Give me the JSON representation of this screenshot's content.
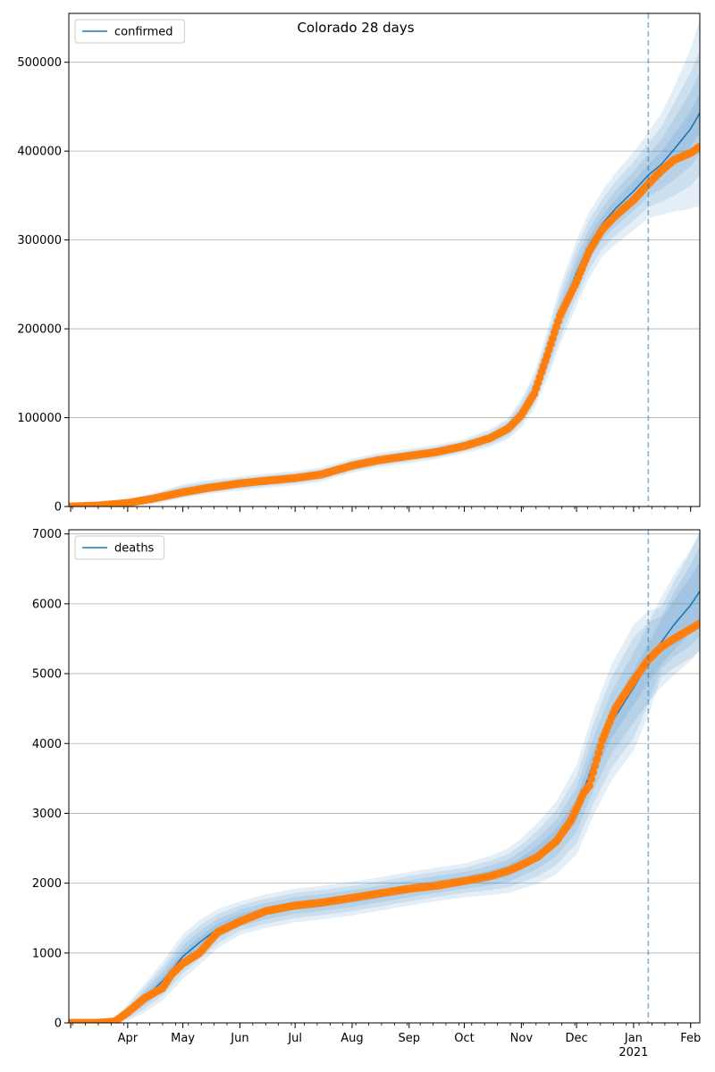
{
  "figure": {
    "title": "Colorado 28 days"
  },
  "colors": {
    "fit_line": "#1f77b4",
    "band": "#1f77b4",
    "observed": "#ff7f0e",
    "grid": "#b0b0b0",
    "vline": "#1f77b4"
  },
  "chart_data": [
    {
      "type": "line",
      "name": "confirmed-panel",
      "legend": [
        "confirmed"
      ],
      "legend_loc": "upper left",
      "grid": "y",
      "xlim": [
        "2020-02-29",
        "2021-02-06"
      ],
      "ylim": [
        0,
        555000
      ],
      "yticks": [
        0,
        100000,
        200000,
        300000,
        400000,
        500000
      ],
      "ytick_labels": [
        "0",
        "100000",
        "200000",
        "300000",
        "400000",
        "500000"
      ],
      "xtick_labels_shown": false,
      "forecast_start": "2021-01-09",
      "fit": {
        "x": [
          "2020-03-01",
          "2020-03-15",
          "2020-04-01",
          "2020-04-15",
          "2020-05-01",
          "2020-05-15",
          "2020-06-01",
          "2020-06-15",
          "2020-07-01",
          "2020-07-15",
          "2020-08-01",
          "2020-08-15",
          "2020-09-01",
          "2020-09-15",
          "2020-10-01",
          "2020-10-15",
          "2020-10-25",
          "2020-11-01",
          "2020-11-08",
          "2020-11-15",
          "2020-11-22",
          "2020-12-01",
          "2020-12-08",
          "2020-12-15",
          "2020-12-22",
          "2021-01-01",
          "2021-01-09",
          "2021-01-16",
          "2021-01-23",
          "2021-02-01",
          "2021-02-06"
        ],
        "y": [
          0,
          1000,
          4000,
          9000,
          17000,
          22000,
          26000,
          29000,
          32000,
          36000,
          46000,
          52000,
          57000,
          61000,
          68000,
          77000,
          88000,
          105000,
          130000,
          170000,
          215000,
          263000,
          295000,
          318000,
          335000,
          355000,
          373000,
          385000,
          402000,
          425000,
          443000
        ],
        "band_widths": [
          [
            0,
            500,
            1000,
            1500,
            2000,
            2000,
            2000,
            2000,
            2000,
            2000,
            2000,
            2000,
            2000,
            2000,
            2000,
            2500,
            3000,
            4000,
            5000,
            7000,
            8000,
            9000,
            9000,
            9000,
            10000,
            11000,
            12000,
            14000,
            17000,
            20000,
            22000
          ],
          [
            0,
            1000,
            2000,
            3000,
            4000,
            4000,
            4000,
            4000,
            4000,
            4000,
            4000,
            4000,
            4000,
            4000,
            4000,
            5000,
            6000,
            8000,
            10000,
            14000,
            16000,
            18000,
            18000,
            18000,
            20000,
            22000,
            24000,
            28000,
            34000,
            42000,
            46000
          ],
          [
            0,
            1500,
            3000,
            4500,
            6000,
            6000,
            6000,
            6000,
            6000,
            6000,
            6000,
            6000,
            6000,
            6000,
            6000,
            7500,
            9000,
            12000,
            15000,
            20000,
            25000,
            28000,
            28000,
            28000,
            30000,
            33000,
            36000,
            42000,
            52000,
            64000,
            70000
          ],
          [
            0,
            2000,
            4000,
            6000,
            8000,
            8000,
            8000,
            8000,
            8000,
            8000,
            8000,
            8000,
            8000,
            8000,
            8000,
            10000,
            12000,
            16000,
            20000,
            27000,
            33000,
            37000,
            37000,
            37000,
            40000,
            44000,
            48000,
            57000,
            70000,
            90000,
            105000
          ]
        ]
      },
      "observed": {
        "x": [
          "2020-03-01",
          "2020-03-15",
          "2020-04-01",
          "2020-04-15",
          "2020-05-01",
          "2020-05-15",
          "2020-06-01",
          "2020-06-15",
          "2020-07-01",
          "2020-07-15",
          "2020-08-01",
          "2020-08-15",
          "2020-09-01",
          "2020-09-15",
          "2020-10-01",
          "2020-10-15",
          "2020-10-25",
          "2020-11-01",
          "2020-11-08",
          "2020-11-15",
          "2020-11-22",
          "2020-12-01",
          "2020-12-08",
          "2020-12-15",
          "2020-12-22",
          "2021-01-01",
          "2021-01-09",
          "2021-01-16",
          "2021-01-23",
          "2021-02-01",
          "2021-02-06"
        ],
        "y": [
          0,
          1000,
          4000,
          9000,
          16000,
          21000,
          26000,
          29000,
          32000,
          36000,
          46000,
          52000,
          57000,
          61000,
          68000,
          77000,
          88000,
          103000,
          127000,
          170000,
          215000,
          253000,
          288000,
          312000,
          327000,
          345000,
          363000,
          378000,
          390000,
          398000,
          405000
        ]
      }
    },
    {
      "type": "line",
      "name": "deaths-panel",
      "legend": [
        "deaths"
      ],
      "legend_loc": "upper left",
      "grid": "y",
      "xlim": [
        "2020-02-29",
        "2021-02-06"
      ],
      "ylim": [
        0,
        7060
      ],
      "yticks": [
        0,
        1000,
        2000,
        3000,
        4000,
        5000,
        6000,
        7000
      ],
      "ytick_labels": [
        "0",
        "1000",
        "2000",
        "3000",
        "4000",
        "5000",
        "6000",
        "7000"
      ],
      "xtick_labels": [
        "Apr",
        "May",
        "Jun",
        "Jul",
        "Aug",
        "Sep",
        "Oct",
        "Nov",
        "Dec",
        "Jan\n2021",
        "Feb"
      ],
      "xtick_dates": [
        "2020-04-01",
        "2020-05-01",
        "2020-06-01",
        "2020-07-01",
        "2020-08-01",
        "2020-09-01",
        "2020-10-01",
        "2020-11-01",
        "2020-12-01",
        "2021-01-01",
        "2021-02-01"
      ],
      "forecast_start": "2021-01-09",
      "fit": {
        "x": [
          "2020-03-01",
          "2020-03-15",
          "2020-03-25",
          "2020-04-01",
          "2020-04-10",
          "2020-04-20",
          "2020-05-01",
          "2020-05-10",
          "2020-05-20",
          "2020-06-01",
          "2020-06-15",
          "2020-07-01",
          "2020-07-15",
          "2020-08-01",
          "2020-08-15",
          "2020-09-01",
          "2020-09-15",
          "2020-10-01",
          "2020-10-15",
          "2020-10-25",
          "2020-11-01",
          "2020-11-10",
          "2020-11-20",
          "2020-12-01",
          "2020-12-10",
          "2020-12-20",
          "2021-01-01",
          "2021-01-09",
          "2021-01-16",
          "2021-01-23",
          "2021-02-01",
          "2021-02-06"
        ],
        "y": [
          0,
          0,
          20,
          150,
          350,
          600,
          950,
          1150,
          1350,
          1500,
          1600,
          1680,
          1720,
          1780,
          1840,
          1920,
          1980,
          2040,
          2110,
          2180,
          2280,
          2430,
          2650,
          3050,
          3700,
          4300,
          4800,
          5150,
          5450,
          5700,
          5980,
          6180
        ],
        "band_widths": [
          [
            0,
            0,
            10,
            30,
            50,
            70,
            80,
            80,
            70,
            60,
            60,
            60,
            60,
            60,
            60,
            60,
            60,
            60,
            70,
            80,
            90,
            110,
            130,
            160,
            190,
            220,
            250,
            280,
            320,
            360,
            400,
            420
          ],
          [
            0,
            0,
            20,
            60,
            100,
            140,
            160,
            160,
            140,
            120,
            120,
            120,
            120,
            120,
            120,
            120,
            120,
            120,
            140,
            160,
            180,
            220,
            260,
            320,
            380,
            440,
            500,
            560,
            640,
            720,
            800,
            840
          ],
          [
            0,
            0,
            30,
            90,
            150,
            210,
            240,
            240,
            210,
            180,
            180,
            180,
            180,
            180,
            180,
            180,
            180,
            180,
            210,
            240,
            270,
            330,
            390,
            480,
            570,
            650,
            720,
            580,
            380,
            460,
            580,
            640
          ],
          [
            0,
            0,
            40,
            120,
            200,
            280,
            320,
            320,
            280,
            240,
            240,
            240,
            240,
            240,
            240,
            240,
            240,
            240,
            280,
            320,
            360,
            440,
            520,
            640,
            740,
            830,
            900,
            750,
            500,
            620,
            760,
            850
          ]
        ]
      },
      "observed": {
        "x": [
          "2020-03-01",
          "2020-03-15",
          "2020-03-25",
          "2020-04-01",
          "2020-04-10",
          "2020-04-20",
          "2020-04-25",
          "2020-05-01",
          "2020-05-10",
          "2020-05-20",
          "2020-06-01",
          "2020-06-15",
          "2020-07-01",
          "2020-07-15",
          "2020-08-01",
          "2020-08-15",
          "2020-09-01",
          "2020-09-15",
          "2020-10-01",
          "2020-10-15",
          "2020-10-25",
          "2020-11-01",
          "2020-11-10",
          "2020-11-20",
          "2020-11-28",
          "2020-12-05",
          "2020-12-08",
          "2020-12-15",
          "2020-12-22",
          "2021-01-01",
          "2021-01-09",
          "2021-01-16",
          "2021-01-23",
          "2021-02-01",
          "2021-02-06"
        ],
        "y": [
          0,
          0,
          20,
          150,
          350,
          500,
          700,
          850,
          1000,
          1300,
          1450,
          1600,
          1680,
          1720,
          1790,
          1850,
          1920,
          1960,
          2030,
          2100,
          2180,
          2260,
          2380,
          2600,
          2900,
          3300,
          3400,
          4050,
          4500,
          4900,
          5200,
          5380,
          5500,
          5640,
          5720
        ]
      }
    }
  ]
}
